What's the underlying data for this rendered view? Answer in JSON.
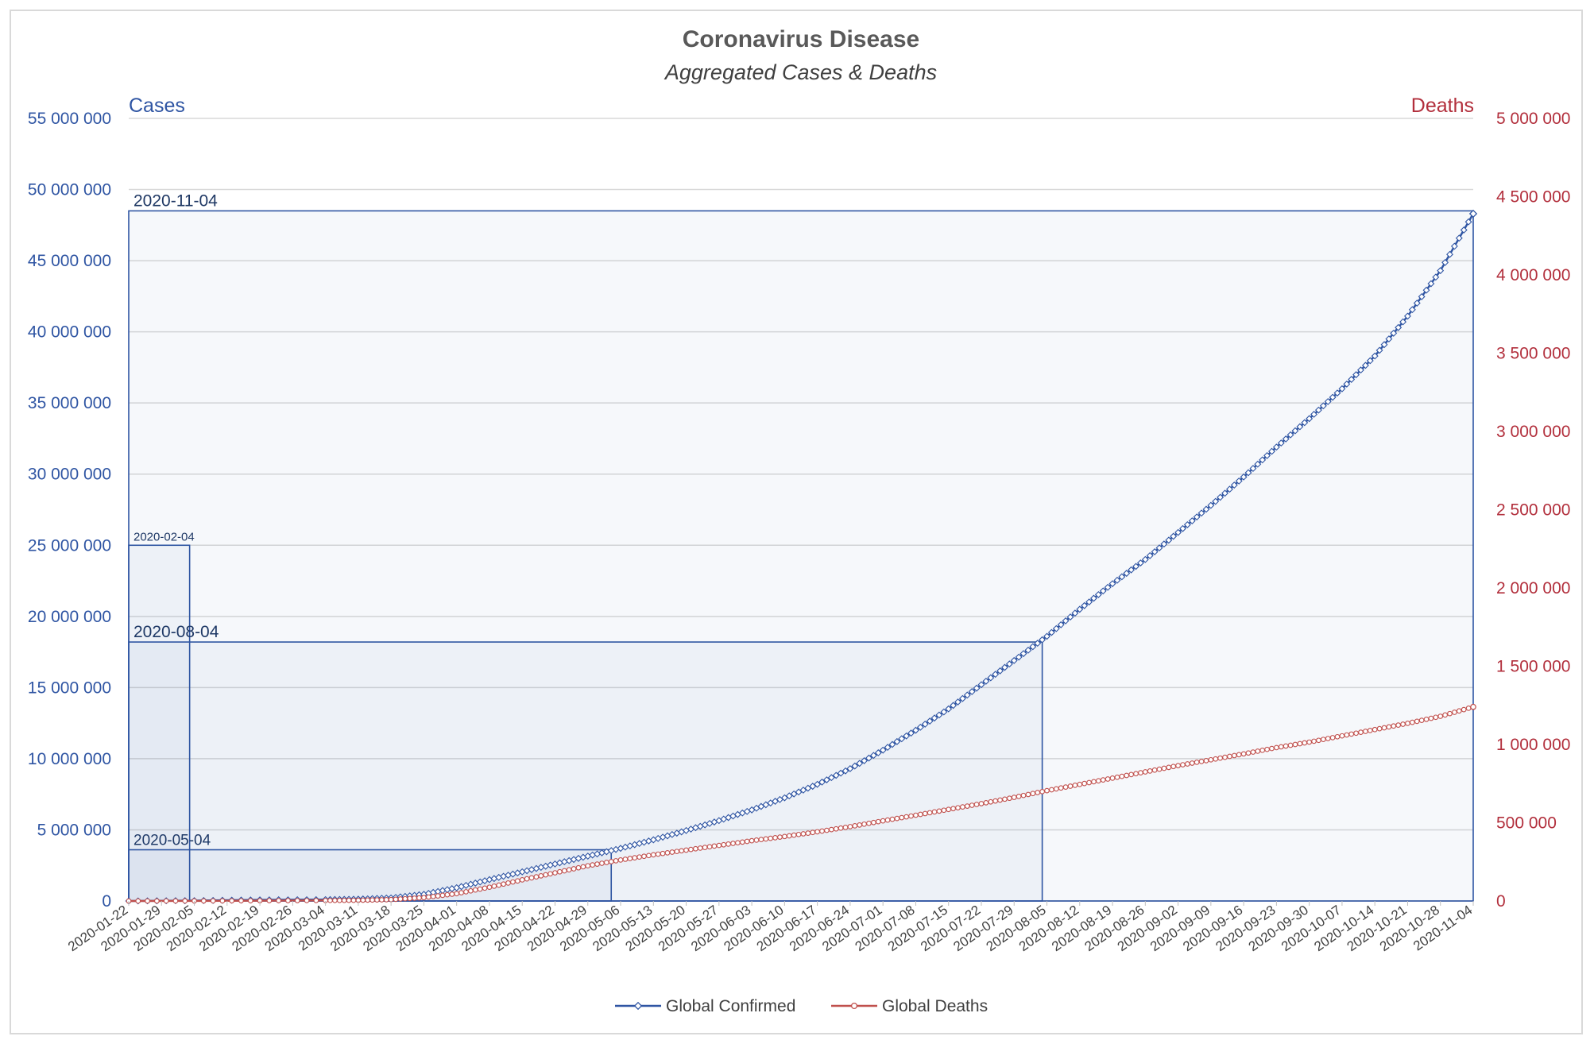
{
  "chart_data": {
    "type": "line",
    "title": "Coronavirus Disease",
    "subtitle": "Aggregated Cases & Deaths",
    "ylabel_left": "Cases",
    "ylabel_right": "Deaths",
    "ylim_left": [
      0,
      55000000
    ],
    "ylim_right": [
      0,
      5000000
    ],
    "yticks_left": [
      "0",
      "5 000 000",
      "10 000 000",
      "15 000 000",
      "20 000 000",
      "25 000 000",
      "30 000 000",
      "35 000 000",
      "40 000 000",
      "45 000 000",
      "50 000 000",
      "55 000 000"
    ],
    "yticks_left_values": [
      0,
      5000000,
      10000000,
      15000000,
      20000000,
      25000000,
      30000000,
      35000000,
      40000000,
      45000000,
      50000000,
      55000000
    ],
    "yticks_right": [
      "0",
      "500 000",
      "1 000 000",
      "1 500 000",
      "2 000 000",
      "2 500 000",
      "3 000 000",
      "3 500 000",
      "4 000 000",
      "4 500 000",
      "5 000 000"
    ],
    "yticks_right_values": [
      0,
      500000,
      1000000,
      1500000,
      2000000,
      2500000,
      3000000,
      3500000,
      4000000,
      4500000,
      5000000
    ],
    "x_start": "2020-01-22",
    "x_end": "2020-11-04",
    "xticks": [
      "2020-01-22",
      "2020-01-29",
      "2020-02-05",
      "2020-02-12",
      "2020-02-19",
      "2020-02-26",
      "2020-03-04",
      "2020-03-11",
      "2020-03-18",
      "2020-03-25",
      "2020-04-01",
      "2020-04-08",
      "2020-04-15",
      "2020-04-22",
      "2020-04-29",
      "2020-05-06",
      "2020-05-13",
      "2020-05-20",
      "2020-05-27",
      "2020-06-03",
      "2020-06-10",
      "2020-06-17",
      "2020-06-24",
      "2020-07-01",
      "2020-07-08",
      "2020-07-15",
      "2020-07-22",
      "2020-07-29",
      "2020-08-05",
      "2020-08-12",
      "2020-08-19",
      "2020-08-26",
      "2020-09-02",
      "2020-09-09",
      "2020-09-16",
      "2020-09-23",
      "2020-09-30",
      "2020-10-07",
      "2020-10-14",
      "2020-10-21",
      "2020-10-28",
      "2020-11-04"
    ],
    "grid": true,
    "legend_position": "bottom",
    "series": [
      {
        "name": "Global Confirmed",
        "axis": "left",
        "color": "#2f55a3",
        "marker": "diamond",
        "points": [
          [
            "2020-01-22",
            555
          ],
          [
            "2020-02-05",
            28000
          ],
          [
            "2020-02-19",
            75600
          ],
          [
            "2020-03-04",
            95000
          ],
          [
            "2020-03-11",
            126000
          ],
          [
            "2020-03-18",
            215000
          ],
          [
            "2020-03-25",
            470000
          ],
          [
            "2020-04-01",
            930000
          ],
          [
            "2020-04-08",
            1500000
          ],
          [
            "2020-04-15",
            2050000
          ],
          [
            "2020-04-22",
            2600000
          ],
          [
            "2020-04-29",
            3150000
          ],
          [
            "2020-05-06",
            3700000
          ],
          [
            "2020-05-13",
            4300000
          ],
          [
            "2020-05-20",
            4950000
          ],
          [
            "2020-05-27",
            5650000
          ],
          [
            "2020-06-03",
            6400000
          ],
          [
            "2020-06-10",
            7250000
          ],
          [
            "2020-06-17",
            8200000
          ],
          [
            "2020-06-24",
            9300000
          ],
          [
            "2020-07-01",
            10600000
          ],
          [
            "2020-07-08",
            12000000
          ],
          [
            "2020-07-15",
            13500000
          ],
          [
            "2020-07-22",
            15200000
          ],
          [
            "2020-07-29",
            16900000
          ],
          [
            "2020-08-05",
            18600000
          ],
          [
            "2020-08-12",
            20500000
          ],
          [
            "2020-08-19",
            22300000
          ],
          [
            "2020-08-26",
            24000000
          ],
          [
            "2020-09-02",
            25900000
          ],
          [
            "2020-09-09",
            27800000
          ],
          [
            "2020-09-16",
            29800000
          ],
          [
            "2020-09-23",
            31900000
          ],
          [
            "2020-09-30",
            33900000
          ],
          [
            "2020-10-07",
            36000000
          ],
          [
            "2020-10-14",
            38300000
          ],
          [
            "2020-10-21",
            41100000
          ],
          [
            "2020-10-28",
            44300000
          ],
          [
            "2020-11-04",
            48300000
          ]
        ]
      },
      {
        "name": "Global Deaths",
        "axis": "right",
        "color": "#c0504d",
        "marker": "circle",
        "points": [
          [
            "2020-01-22",
            17
          ],
          [
            "2020-02-05",
            564
          ],
          [
            "2020-02-19",
            2100
          ],
          [
            "2020-03-04",
            3300
          ],
          [
            "2020-03-11",
            4600
          ],
          [
            "2020-03-18",
            9000
          ],
          [
            "2020-03-25",
            21500
          ],
          [
            "2020-04-01",
            47000
          ],
          [
            "2020-04-08",
            88000
          ],
          [
            "2020-04-15",
            135000
          ],
          [
            "2020-04-22",
            180000
          ],
          [
            "2020-04-29",
            225000
          ],
          [
            "2020-05-06",
            262000
          ],
          [
            "2020-05-13",
            295000
          ],
          [
            "2020-05-20",
            325000
          ],
          [
            "2020-05-27",
            355000
          ],
          [
            "2020-06-03",
            385000
          ],
          [
            "2020-06-10",
            412000
          ],
          [
            "2020-06-17",
            442000
          ],
          [
            "2020-06-24",
            475000
          ],
          [
            "2020-07-01",
            512000
          ],
          [
            "2020-07-08",
            548000
          ],
          [
            "2020-07-15",
            585000
          ],
          [
            "2020-07-22",
            622000
          ],
          [
            "2020-07-29",
            662000
          ],
          [
            "2020-08-05",
            705000
          ],
          [
            "2020-08-12",
            745000
          ],
          [
            "2020-08-19",
            785000
          ],
          [
            "2020-08-26",
            825000
          ],
          [
            "2020-09-02",
            865000
          ],
          [
            "2020-09-09",
            902000
          ],
          [
            "2020-09-16",
            940000
          ],
          [
            "2020-09-23",
            980000
          ],
          [
            "2020-09-30",
            1015000
          ],
          [
            "2020-10-07",
            1055000
          ],
          [
            "2020-10-14",
            1095000
          ],
          [
            "2020-10-21",
            1135000
          ],
          [
            "2020-10-28",
            1180000
          ],
          [
            "2020-11-04",
            1240000
          ]
        ]
      }
    ],
    "annotations": [
      {
        "label": "2020-02-04",
        "date": "2020-02-04",
        "value": 25000000
      },
      {
        "label": "2020-05-04",
        "date": "2020-05-04",
        "value": 3600000
      },
      {
        "label": "2020-08-04",
        "date": "2020-08-04",
        "value": 18200000
      },
      {
        "label": "2020-11-04",
        "date": "2020-11-04",
        "value": 48500000
      }
    ]
  }
}
